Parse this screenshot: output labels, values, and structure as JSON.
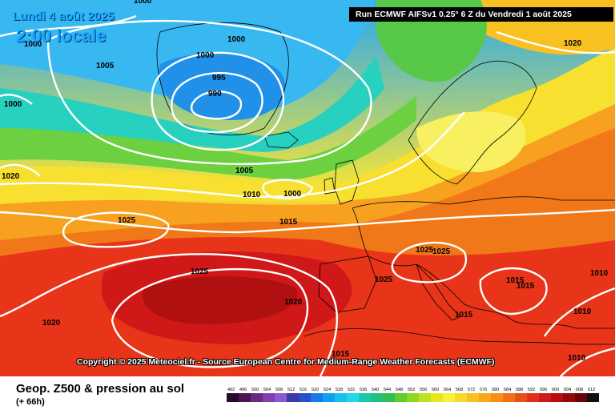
{
  "header": {
    "date": "Lundi 4 août 2025",
    "time": "2:00 locale",
    "run_info": "Run ECMWF AIFSv1 0.25° 6 Z du Vendredi 1 août 2025"
  },
  "copyright": "Copyright © 2025 Meteociel.fr - Source European Centre for Medium-Range Weather Forecasts (ECMWF)",
  "footer": {
    "title": "Geop. Z500 & pression au sol",
    "subtitle": "(+ 66h)"
  },
  "legend": {
    "values": [
      "492",
      "496",
      "500",
      "504",
      "508",
      "512",
      "516",
      "520",
      "524",
      "528",
      "532",
      "536",
      "540",
      "544",
      "548",
      "552",
      "556",
      "560",
      "564",
      "568",
      "572",
      "576",
      "580",
      "584",
      "588",
      "592",
      "596",
      "600",
      "604",
      "608",
      "612"
    ],
    "colors": [
      "#2a0a2e",
      "#4a1750",
      "#6a2a80",
      "#7f3fb0",
      "#8c5ad0",
      "#3a3aa8",
      "#2450c8",
      "#1a78e8",
      "#10a0f0",
      "#18c0f0",
      "#20d8e8",
      "#18c8b0",
      "#20c080",
      "#30c050",
      "#60cc30",
      "#90d820",
      "#c0e020",
      "#e8e818",
      "#f8f040",
      "#f8d828",
      "#f8c020",
      "#f8a818",
      "#f89018",
      "#f07018",
      "#e85018",
      "#e03018",
      "#d01818",
      "#b80a10",
      "#900808",
      "#680404",
      "#101010"
    ]
  },
  "isobars": {
    "labels": [
      "1000",
      "1000",
      "1005",
      "1000",
      "995",
      "990",
      "1000",
      "1000",
      "1005",
      "1010",
      "1000",
      "1025",
      "1015",
      "1025",
      "1025",
      "1025",
      "1025",
      "1020",
      "1020",
      "1015",
      "1015",
      "1015",
      "1015",
      "1010",
      "1010",
      "1010",
      "1020",
      "1020"
    ]
  },
  "colors": {
    "background_run": "#000000",
    "date_text": "#1ea6ff"
  }
}
